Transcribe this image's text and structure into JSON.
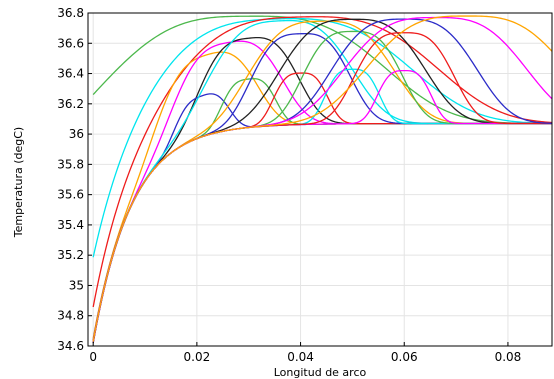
{
  "chart_data": {
    "type": "line",
    "xlabel": "Longitud de arco",
    "ylabel": "Temperatura (degC)",
    "xlim": [
      -0.001,
      0.0885
    ],
    "ylim": [
      34.6,
      36.8
    ],
    "grid": true,
    "legend": "none",
    "x_ticks": [
      "0",
      "0.02",
      "0.04",
      "0.06",
      "0.08"
    ],
    "x_tick_values": [
      0,
      0.02,
      0.04,
      0.06,
      0.08
    ],
    "y_ticks": [
      "34.6",
      "34.8",
      "35",
      "35.2",
      "35.4",
      "35.6",
      "35.8",
      "36",
      "36.2",
      "36.4",
      "36.6",
      "36.8"
    ],
    "y_tick_values": [
      34.6,
      34.8,
      35.0,
      35.2,
      35.4,
      35.6,
      35.8,
      36.0,
      36.2,
      36.4,
      36.6,
      36.8
    ],
    "baseline_temp": 36.07,
    "series": [
      {
        "color": "#4cb84c",
        "start": 36.0,
        "peak": 36.78,
        "center": 0.03,
        "width": 0.03
      },
      {
        "color": "#00e5ee",
        "start": 35.05,
        "peak": 36.77,
        "center": 0.035,
        "width": 0.03
      },
      {
        "color": "#ee1c1c",
        "start": 34.8,
        "peak": 36.78,
        "center": 0.04,
        "width": 0.03
      },
      {
        "color": "#ffa500",
        "start": 34.65,
        "peak": 36.6,
        "center": 0.022,
        "width": 0.011
      },
      {
        "color": "#ff00ff",
        "start": 34.62,
        "peak": 36.65,
        "center": 0.026,
        "width": 0.012
      },
      {
        "color": "#222222",
        "start": 34.62,
        "peak": 36.66,
        "center": 0.03,
        "width": 0.011
      },
      {
        "color": "#2c2cc8",
        "start": 34.64,
        "peak": 36.34,
        "center": 0.021,
        "width": 0.006
      },
      {
        "color": "#4cb84c",
        "start": 34.63,
        "peak": 36.39,
        "center": 0.03,
        "width": 0.006
      },
      {
        "color": "#00e5ee",
        "start": 34.63,
        "peak": 36.76,
        "center": 0.036,
        "width": 0.016
      },
      {
        "color": "#ee1c1c",
        "start": 34.63,
        "peak": 36.41,
        "center": 0.04,
        "width": 0.006
      },
      {
        "color": "#ffa500",
        "start": 34.63,
        "peak": 36.75,
        "center": 0.044,
        "width": 0.016
      },
      {
        "color": "#2c2cc8",
        "start": 34.63,
        "peak": 36.67,
        "center": 0.04,
        "width": 0.011
      },
      {
        "color": "#00e5ee",
        "start": 34.63,
        "peak": 36.43,
        "center": 0.05,
        "width": 0.006
      },
      {
        "color": "#222222",
        "start": 34.63,
        "peak": 36.76,
        "center": 0.05,
        "width": 0.016
      },
      {
        "color": "#4cb84c",
        "start": 34.63,
        "peak": 36.68,
        "center": 0.05,
        "width": 0.011
      },
      {
        "color": "#ff00ff",
        "start": 34.63,
        "peak": 36.42,
        "center": 0.06,
        "width": 0.006
      },
      {
        "color": "#ee1c1c",
        "start": 34.63,
        "peak": 36.67,
        "center": 0.06,
        "width": 0.011
      },
      {
        "color": "#2c2cc8",
        "start": 34.63,
        "peak": 36.76,
        "center": 0.06,
        "width": 0.016
      },
      {
        "color": "#ff00ff",
        "start": 34.63,
        "peak": 36.77,
        "center": 0.066,
        "width": 0.02
      },
      {
        "color": "#ffa500",
        "start": 34.63,
        "peak": 36.78,
        "center": 0.072,
        "width": 0.022
      }
    ]
  }
}
